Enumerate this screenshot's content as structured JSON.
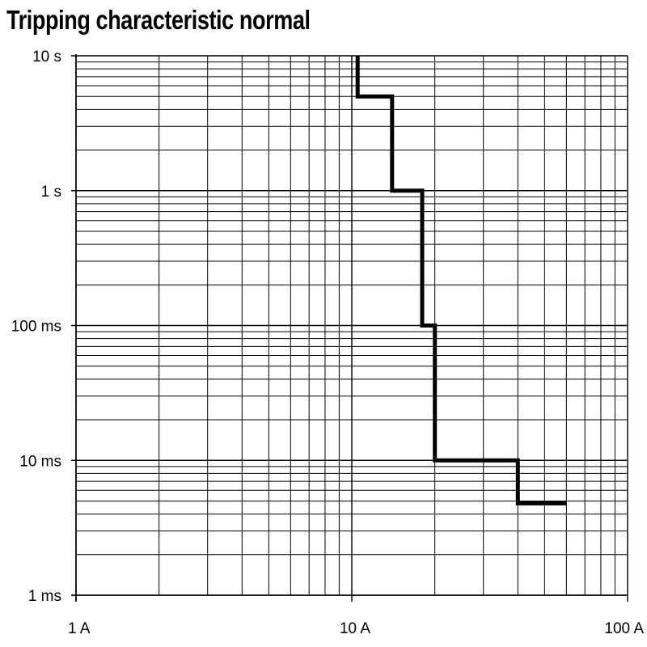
{
  "chart_data": {
    "type": "line",
    "title": "Tripping characteristic normal",
    "xlabel": "",
    "ylabel": "",
    "x_scale": "log",
    "y_scale": "log",
    "x_unit": "A",
    "y_unit": "s",
    "xlim": [
      1,
      100
    ],
    "ylim": [
      0.001,
      10
    ],
    "grid": true,
    "x_ticks": [
      {
        "value": 1,
        "label": "1 A"
      },
      {
        "value": 10,
        "label": "10 A"
      },
      {
        "value": 100,
        "label": "100 A"
      }
    ],
    "y_ticks": [
      {
        "value": 10,
        "label": "10 s"
      },
      {
        "value": 1,
        "label": "1 s"
      },
      {
        "value": 0.1,
        "label": "100 ms"
      },
      {
        "value": 0.01,
        "label": "10 ms"
      },
      {
        "value": 0.001,
        "label": "1 ms"
      }
    ],
    "series": [
      {
        "color": "#000000",
        "x": [
          10.5,
          10.5,
          14,
          14,
          18,
          18,
          20,
          20,
          40,
          40,
          60
        ],
        "y": [
          10,
          5,
          5,
          1,
          1,
          0.1,
          0.1,
          0.01,
          0.01,
          0.0048,
          0.0048
        ]
      }
    ]
  }
}
